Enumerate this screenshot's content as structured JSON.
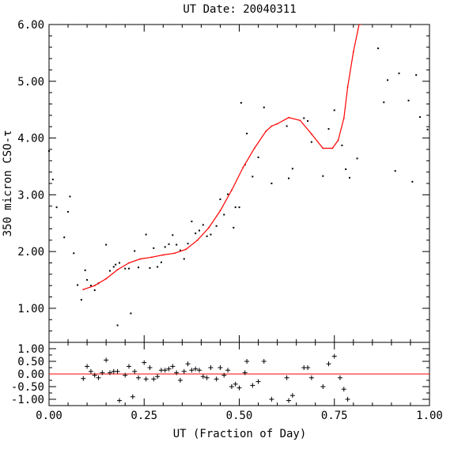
{
  "colors": {
    "fit": "#ff0000",
    "zero_line": "#ff0000",
    "points": "#000000"
  },
  "chart_data": [
    {
      "type": "scatter",
      "panel": "main",
      "title": "UT Date: 20040311",
      "ylabel": "350 micron CSO-τ",
      "xlabel": "",
      "xlim": [
        0.0,
        1.0
      ],
      "ylim": [
        0.4,
        6.0
      ],
      "xticks": [
        "0.00",
        "0.25",
        "0.50",
        "0.75",
        "1.00"
      ],
      "yticks": [
        "1.00",
        "2.00",
        "3.00",
        "4.00",
        "5.00",
        "6.00"
      ],
      "marker": "dot",
      "points": {
        "x": [
          0.0,
          0.01,
          0.02,
          0.04,
          0.05,
          0.055,
          0.065,
          0.075,
          0.085,
          0.095,
          0.1,
          0.11,
          0.12,
          0.13,
          0.15,
          0.16,
          0.17,
          0.175,
          0.18,
          0.185,
          0.2,
          0.21,
          0.215,
          0.225,
          0.235,
          0.255,
          0.265,
          0.275,
          0.285,
          0.295,
          0.305,
          0.315,
          0.325,
          0.335,
          0.345,
          0.355,
          0.365,
          0.375,
          0.385,
          0.395,
          0.405,
          0.415,
          0.425,
          0.44,
          0.45,
          0.46,
          0.47,
          0.485,
          0.49,
          0.5,
          0.505,
          0.515,
          0.52,
          0.535,
          0.55,
          0.565,
          0.585,
          0.625,
          0.63,
          0.64,
          0.67,
          0.68,
          0.69,
          0.72,
          0.735,
          0.75,
          0.77,
          0.78,
          0.79,
          0.81,
          0.865,
          0.88,
          0.89,
          0.91,
          0.92,
          0.945,
          0.955,
          0.965,
          0.975,
          0.995
        ],
        "y": [
          3.77,
          3.27,
          2.78,
          2.25,
          2.7,
          2.97,
          1.97,
          1.41,
          1.15,
          1.67,
          1.5,
          1.4,
          1.32,
          1.44,
          2.12,
          1.66,
          1.73,
          1.77,
          0.7,
          1.8,
          1.7,
          1.7,
          0.91,
          2.01,
          1.72,
          2.3,
          1.71,
          2.06,
          1.73,
          1.81,
          2.08,
          2.13,
          2.29,
          2.12,
          2.02,
          1.87,
          2.14,
          2.53,
          2.32,
          2.37,
          2.47,
          2.27,
          2.3,
          2.45,
          2.92,
          2.65,
          3.01,
          2.42,
          2.78,
          2.78,
          4.62,
          3.53,
          4.08,
          3.32,
          3.66,
          4.54,
          3.2,
          4.21,
          3.29,
          3.46,
          4.35,
          4.3,
          3.93,
          3.33,
          4.16,
          4.49,
          3.87,
          3.45,
          3.3,
          3.64,
          5.58,
          4.63,
          5.02,
          3.42,
          5.14,
          4.66,
          3.23,
          5.11,
          4.37,
          4.15
        ]
      },
      "fit": {
        "x": [
          0.09,
          0.12,
          0.15,
          0.18,
          0.21,
          0.24,
          0.27,
          0.3,
          0.33,
          0.36,
          0.39,
          0.42,
          0.45,
          0.48,
          0.51,
          0.54,
          0.57,
          0.585,
          0.6,
          0.63,
          0.66,
          0.69,
          0.72,
          0.745,
          0.76,
          0.775,
          0.785,
          0.8,
          0.815,
          0.822
        ],
        "y": [
          1.33,
          1.4,
          1.52,
          1.68,
          1.8,
          1.87,
          1.9,
          1.94,
          1.97,
          2.04,
          2.2,
          2.42,
          2.72,
          3.08,
          3.48,
          3.82,
          4.12,
          4.21,
          4.25,
          4.36,
          4.31,
          4.07,
          3.82,
          3.82,
          3.96,
          4.35,
          4.9,
          5.52,
          6.0,
          6.0
        ]
      }
    },
    {
      "type": "scatter",
      "panel": "residuals",
      "title": "",
      "xlabel": "UT (Fraction of Day)",
      "ylabel": "",
      "xlim": [
        0.0,
        1.0
      ],
      "ylim": [
        -1.25,
        1.25
      ],
      "xticks": [
        "0.00",
        "0.25",
        "0.50",
        "0.75",
        "1.00"
      ],
      "yticks": [
        "1.00",
        "0.50",
        "0.00",
        "-0.50",
        "-1.00"
      ],
      "marker": "plus",
      "reference_line_y": 0.0,
      "points": {
        "x": [
          0.09,
          0.1,
          0.11,
          0.12,
          0.13,
          0.14,
          0.15,
          0.16,
          0.17,
          0.18,
          0.185,
          0.2,
          0.21,
          0.22,
          0.225,
          0.235,
          0.25,
          0.255,
          0.265,
          0.275,
          0.285,
          0.295,
          0.305,
          0.315,
          0.325,
          0.335,
          0.345,
          0.355,
          0.365,
          0.375,
          0.385,
          0.395,
          0.405,
          0.415,
          0.425,
          0.44,
          0.45,
          0.46,
          0.47,
          0.48,
          0.49,
          0.5,
          0.515,
          0.52,
          0.535,
          0.55,
          0.565,
          0.585,
          0.625,
          0.63,
          0.64,
          0.67,
          0.68,
          0.69,
          0.72,
          0.735,
          0.75,
          0.765,
          0.775,
          0.785
        ],
        "y": [
          -0.18,
          0.3,
          0.1,
          -0.05,
          -0.15,
          0.05,
          0.55,
          0.05,
          0.1,
          0.1,
          -1.05,
          -0.05,
          0.3,
          -0.9,
          0.1,
          -0.15,
          0.45,
          -0.2,
          0.25,
          -0.2,
          -0.1,
          0.15,
          0.15,
          0.2,
          0.3,
          0.05,
          -0.25,
          0.1,
          0.4,
          0.15,
          0.2,
          0.15,
          -0.1,
          -0.15,
          0.25,
          -0.2,
          0.25,
          -0.05,
          0.15,
          -0.5,
          -0.4,
          -0.55,
          0.05,
          0.5,
          -0.45,
          -0.3,
          0.5,
          -1.0,
          -0.15,
          -1.05,
          -0.85,
          0.25,
          0.25,
          -0.15,
          -0.5,
          0.4,
          0.7,
          -0.15,
          -0.6,
          -1.0
        ]
      }
    }
  ]
}
